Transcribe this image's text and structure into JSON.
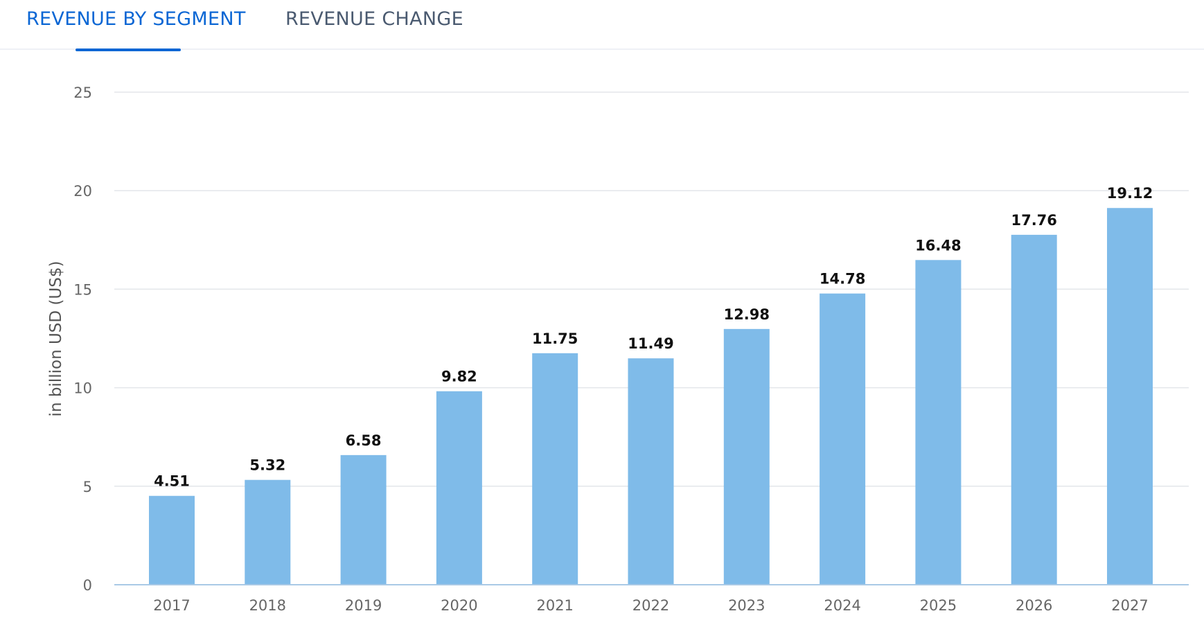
{
  "tabs": {
    "active_label": "REVENUE BY SEGMENT",
    "inactive_label": "REVENUE CHANGE"
  },
  "colors": {
    "accent": "#0a66d4",
    "bar": "#7fbbe9",
    "grid": "#e3e6ea",
    "axis": "#a9c9e6"
  },
  "chart_data": {
    "type": "bar",
    "title": "",
    "xlabel": "",
    "ylabel": "in billion USD (US$)",
    "ylim": [
      0,
      25
    ],
    "yticks": [
      0,
      5,
      10,
      15,
      20,
      25
    ],
    "grid": true,
    "categories": [
      "2017",
      "2018",
      "2019",
      "2020",
      "2021",
      "2022",
      "2023",
      "2024",
      "2025",
      "2026",
      "2027"
    ],
    "values": [
      4.51,
      5.32,
      6.58,
      9.82,
      11.75,
      11.49,
      12.98,
      14.78,
      16.48,
      17.76,
      19.12
    ],
    "value_labels": [
      "4.51",
      "5.32",
      "6.58",
      "9.82",
      "11.75",
      "11.49",
      "12.98",
      "14.78",
      "16.48",
      "17.76",
      "19.12"
    ]
  }
}
